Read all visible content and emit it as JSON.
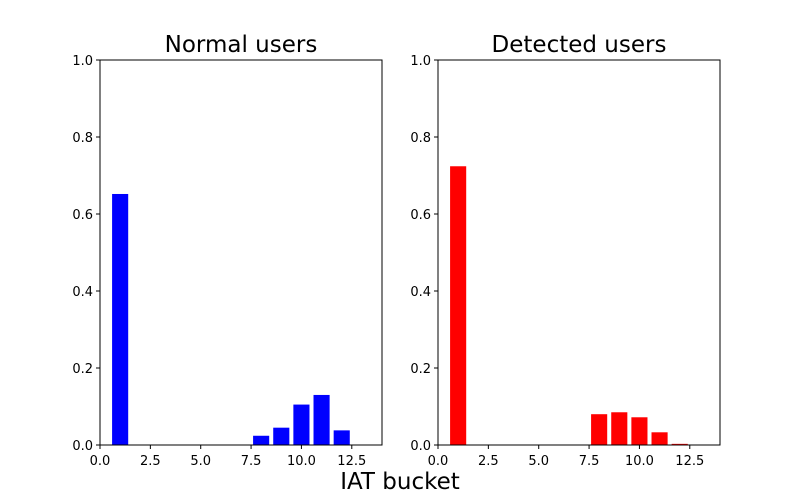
{
  "figure": {
    "xlabel": "IAT bucket"
  },
  "chart_data": [
    {
      "type": "bar",
      "title": "Normal users",
      "xlabel": "",
      "ylabel": "",
      "xlim": [
        0,
        14
      ],
      "ylim": [
        0,
        1.0
      ],
      "xticks": [
        0.0,
        2.5,
        5.0,
        7.5,
        10.0,
        12.5
      ],
      "xtick_labels": [
        "0.0",
        "2.5",
        "5.0",
        "7.5",
        "10.0",
        "12.5"
      ],
      "yticks": [
        0.0,
        0.2,
        0.4,
        0.6,
        0.8,
        1.0
      ],
      "ytick_labels": [
        "0.0",
        "0.2",
        "0.4",
        "0.6",
        "0.8",
        "1.0"
      ],
      "bar_width": 0.8,
      "color": "#0000ff",
      "x": [
        1,
        2,
        3,
        4,
        5,
        6,
        7,
        8,
        9,
        10,
        11,
        12,
        13
      ],
      "values": [
        0.652,
        0,
        0,
        0,
        0,
        0,
        0,
        0.024,
        0.045,
        0.105,
        0.13,
        0.038,
        0
      ]
    },
    {
      "type": "bar",
      "title": "Detected users",
      "xlabel": "",
      "ylabel": "",
      "xlim": [
        0,
        14
      ],
      "ylim": [
        0,
        1.0
      ],
      "xticks": [
        0.0,
        2.5,
        5.0,
        7.5,
        10.0,
        12.5
      ],
      "xtick_labels": [
        "0.0",
        "2.5",
        "5.0",
        "7.5",
        "10.0",
        "12.5"
      ],
      "yticks": [
        0.0,
        0.2,
        0.4,
        0.6,
        0.8,
        1.0
      ],
      "ytick_labels": [
        "0.0",
        "0.2",
        "0.4",
        "0.6",
        "0.8",
        "1.0"
      ],
      "bar_width": 0.8,
      "color": "#ff0000",
      "x": [
        1,
        2,
        3,
        4,
        5,
        6,
        7,
        8,
        9,
        10,
        11,
        12,
        13
      ],
      "values": [
        0.724,
        0,
        0,
        0,
        0,
        0,
        0,
        0.08,
        0.085,
        0.072,
        0.033,
        0.003,
        0
      ]
    }
  ]
}
